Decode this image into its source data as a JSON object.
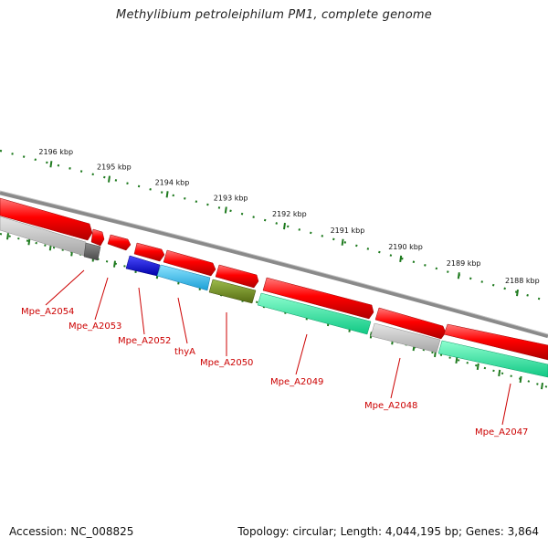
{
  "title": "Methylibium petroleiphilum PM1, complete genome",
  "accession": "Accession: NC_008825",
  "summary": "Topology: circular; Length: 4,044,195 bp; Genes: 3,864",
  "ruler": [
    "2196 kbp",
    "2195 kbp",
    "2194 kbp",
    "2193 kbp",
    "2192 kbp",
    "2191 kbp",
    "2190 kbp",
    "2189 kbp",
    "2188 kbp"
  ],
  "gene_labels": [
    "Mpe_A2054",
    "Mpe_A2053",
    "Mpe_A2052",
    "thyA",
    "Mpe_A2050",
    "Mpe_A2049",
    "Mpe_A2048",
    "Mpe_A2047"
  ],
  "colors": {
    "backbone": "#8a8a8a",
    "ruler_ticks": "#1e7a1e",
    "forward_gene": "#ff0000",
    "reverse_gray": "#bdbdbd",
    "reverse_dark": "#666666",
    "blue": "#0000dd",
    "cyan": "#22b8f0",
    "olive": "#6b8e23",
    "mint": "#22f0a0",
    "label": "#cc0000"
  }
}
